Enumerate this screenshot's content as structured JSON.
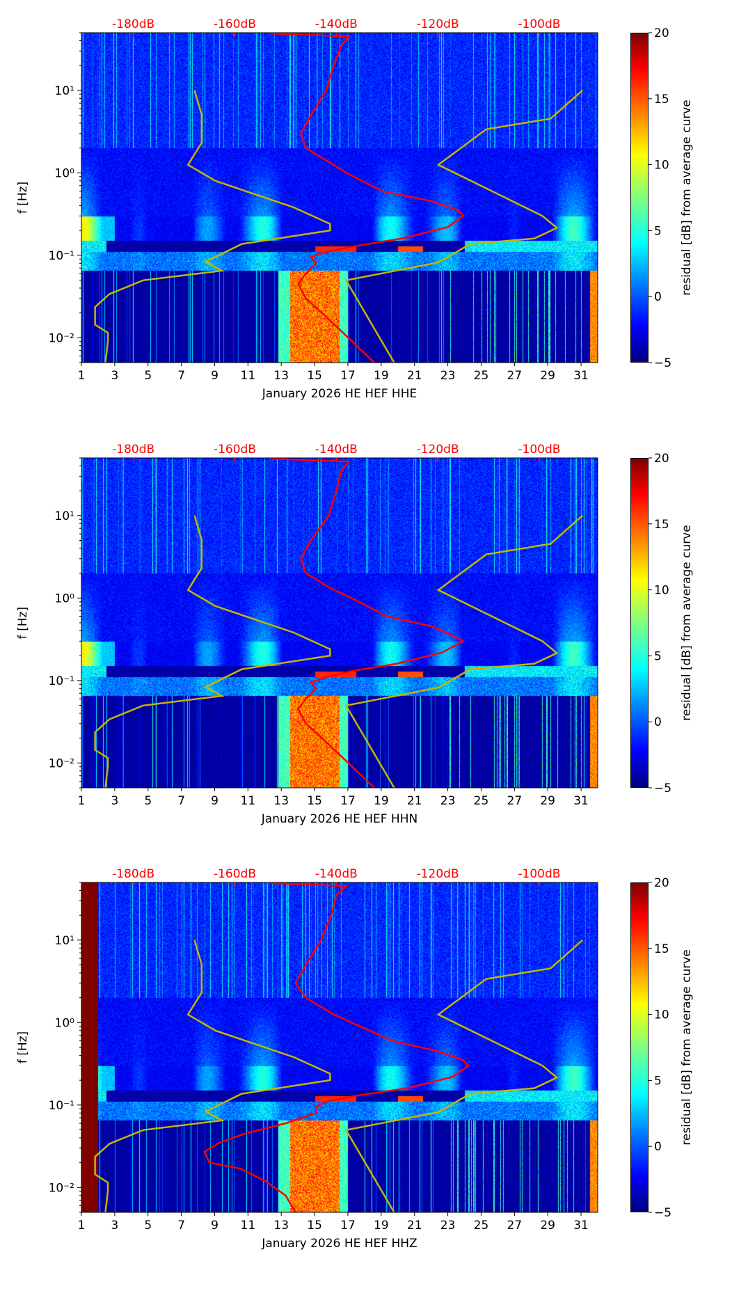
{
  "chart_data": [
    {
      "type": "heatmap",
      "xlabel": "January 2026 HE HEF  HHE",
      "ylabel": "f [Hz]",
      "colorbar_label": "residual [dB] from average curve",
      "colorbar_ticks": [
        "−5",
        "0",
        "5",
        "10",
        "15",
        "20"
      ],
      "colorbar_range": [
        -5,
        20
      ],
      "x_ticks": [
        "1",
        "3",
        "5",
        "7",
        "9",
        "11",
        "13",
        "15",
        "17",
        "19",
        "21",
        "23",
        "25",
        "27",
        "29",
        "31"
      ],
      "x_range_days": [
        1,
        32
      ],
      "y_ticks": [
        "10⁻²",
        "10⁻¹",
        "10⁰",
        "10¹"
      ],
      "y_range_hz": [
        0.005,
        50
      ],
      "top_axis_ticks": [
        "-180dB",
        "-160dB",
        "-140dB",
        "-120dB",
        "-100dB"
      ],
      "top_axis_values_db": [
        -180,
        -160,
        -140,
        -120,
        -100
      ],
      "red_curve_db_hz": [
        [
          -153,
          49
        ],
        [
          -137.5,
          45
        ],
        [
          -139,
          35
        ],
        [
          -140.5,
          20
        ],
        [
          -142,
          10
        ],
        [
          -145,
          5
        ],
        [
          -147,
          3
        ],
        [
          -146,
          2
        ],
        [
          -141,
          1.3
        ],
        [
          -138,
          1
        ],
        [
          -131,
          0.6
        ],
        [
          -121,
          0.45
        ],
        [
          -116,
          0.35
        ],
        [
          -115,
          0.3
        ],
        [
          -118,
          0.22
        ],
        [
          -127,
          0.16
        ],
        [
          -136,
          0.13
        ],
        [
          -142,
          0.11
        ],
        [
          -145,
          0.095
        ],
        [
          -144,
          0.08
        ],
        [
          -146,
          0.06
        ],
        [
          -147.5,
          0.045
        ],
        [
          -146,
          0.03
        ],
        [
          -142,
          0.018
        ],
        [
          -139,
          0.012
        ],
        [
          -136,
          0.008
        ],
        [
          -132.5,
          0.005
        ]
      ],
      "yellow_curves_day_hz": [
        [
          [
            7.79,
            10
          ],
          [
            8.22,
            5.08
          ],
          [
            8.22,
            2.31
          ],
          [
            7.4,
            1.25
          ],
          [
            9.04,
            0.8
          ],
          [
            13.76,
            0.38
          ],
          [
            15.93,
            0.24
          ],
          [
            15.93,
            0.2
          ],
          [
            10.63,
            0.137
          ],
          [
            8.46,
            0.0835
          ],
          [
            9.43,
            0.065
          ],
          [
            4.71,
            0.0497
          ],
          [
            2.69,
            0.0339
          ],
          [
            1.82,
            0.0236
          ],
          [
            1.82,
            0.0144
          ],
          [
            2.59,
            0.0115
          ],
          [
            2.59,
            0.0091
          ],
          [
            2.44,
            0.005
          ]
        ],
        [
          [
            31.09,
            10
          ],
          [
            29.17,
            4.54
          ],
          [
            25.31,
            3.38
          ],
          [
            22.43,
            1.25
          ],
          [
            28.68,
            0.3
          ],
          [
            29.55,
            0.215
          ],
          [
            28.2,
            0.16
          ],
          [
            24.35,
            0.137
          ],
          [
            22.43,
            0.082
          ],
          [
            16.89,
            0.0497
          ],
          [
            19.78,
            0.005
          ]
        ]
      ],
      "colors": {
        "red_curve": "#ff0000",
        "yellow_curve": "#c8b400"
      }
    },
    {
      "type": "heatmap",
      "xlabel": "January 2026 HE HEF  HHN",
      "ylabel": "f [Hz]",
      "colorbar_label": "residual [dB] from average curve",
      "colorbar_ticks": [
        "−5",
        "0",
        "5",
        "10",
        "15",
        "20"
      ],
      "colorbar_range": [
        -5,
        20
      ],
      "x_ticks": [
        "1",
        "3",
        "5",
        "7",
        "9",
        "11",
        "13",
        "15",
        "17",
        "19",
        "21",
        "23",
        "25",
        "27",
        "29",
        "31"
      ],
      "x_range_days": [
        1,
        32
      ],
      "y_ticks": [
        "10⁻²",
        "10⁻¹",
        "10⁰",
        "10¹"
      ],
      "y_range_hz": [
        0.005,
        50
      ],
      "top_axis_ticks": [
        "-180dB",
        "-160dB",
        "-140dB",
        "-120dB",
        "-100dB"
      ],
      "top_axis_values_db": [
        -180,
        -160,
        -140,
        -120,
        -100
      ],
      "red_curve_db_hz": [
        [
          -153,
          49
        ],
        [
          -137.5,
          45
        ],
        [
          -139,
          35
        ],
        [
          -140,
          20
        ],
        [
          -141.5,
          10
        ],
        [
          -145,
          5
        ],
        [
          -147,
          3
        ],
        [
          -146,
          2
        ],
        [
          -141,
          1.3
        ],
        [
          -137,
          1
        ],
        [
          -130,
          0.6
        ],
        [
          -121,
          0.45
        ],
        [
          -117,
          0.35
        ],
        [
          -115,
          0.3
        ],
        [
          -119,
          0.22
        ],
        [
          -128,
          0.16
        ],
        [
          -137,
          0.13
        ],
        [
          -142,
          0.11
        ],
        [
          -145,
          0.095
        ],
        [
          -144,
          0.08
        ],
        [
          -146,
          0.06
        ],
        [
          -147.5,
          0.045
        ],
        [
          -146,
          0.03
        ],
        [
          -142,
          0.018
        ],
        [
          -139,
          0.012
        ],
        [
          -136,
          0.008
        ],
        [
          -132.5,
          0.005
        ]
      ],
      "yellow_curves_day_hz": [
        [
          [
            7.79,
            10
          ],
          [
            8.22,
            5.08
          ],
          [
            8.22,
            2.31
          ],
          [
            7.4,
            1.25
          ],
          [
            9.04,
            0.8
          ],
          [
            13.76,
            0.38
          ],
          [
            15.93,
            0.24
          ],
          [
            15.93,
            0.2
          ],
          [
            10.63,
            0.137
          ],
          [
            8.46,
            0.0835
          ],
          [
            9.43,
            0.065
          ],
          [
            4.71,
            0.0497
          ],
          [
            2.69,
            0.0339
          ],
          [
            1.82,
            0.0236
          ],
          [
            1.82,
            0.0144
          ],
          [
            2.59,
            0.0115
          ],
          [
            2.59,
            0.0091
          ],
          [
            2.44,
            0.005
          ]
        ],
        [
          [
            31.09,
            10
          ],
          [
            29.17,
            4.54
          ],
          [
            25.31,
            3.38
          ],
          [
            22.43,
            1.25
          ],
          [
            28.68,
            0.3
          ],
          [
            29.55,
            0.215
          ],
          [
            28.2,
            0.16
          ],
          [
            24.35,
            0.137
          ],
          [
            22.43,
            0.082
          ],
          [
            16.89,
            0.0497
          ],
          [
            19.78,
            0.005
          ]
        ]
      ],
      "colors": {
        "red_curve": "#ff0000",
        "yellow_curve": "#c8b400"
      }
    },
    {
      "type": "heatmap",
      "xlabel": "January 2026 HE HEF  HHZ",
      "ylabel": "f [Hz]",
      "colorbar_label": "residual [dB] from average curve",
      "colorbar_ticks": [
        "−5",
        "0",
        "5",
        "10",
        "15",
        "20"
      ],
      "colorbar_range": [
        -5,
        20
      ],
      "x_ticks": [
        "1",
        "3",
        "5",
        "7",
        "9",
        "11",
        "13",
        "15",
        "17",
        "19",
        "21",
        "23",
        "25",
        "27",
        "29",
        "31"
      ],
      "x_range_days": [
        1,
        32
      ],
      "y_ticks": [
        "10⁻²",
        "10⁻¹",
        "10⁰",
        "10¹"
      ],
      "y_range_hz": [
        0.005,
        50
      ],
      "top_axis_ticks": [
        "-180dB",
        "-160dB",
        "-140dB",
        "-120dB",
        "-100dB"
      ],
      "top_axis_values_db": [
        -180,
        -160,
        -140,
        -120,
        -100
      ],
      "red_curve_db_hz": [
        [
          -153,
          49
        ],
        [
          -138,
          45
        ],
        [
          -140,
          35
        ],
        [
          -141,
          20
        ],
        [
          -143,
          10
        ],
        [
          -146,
          5
        ],
        [
          -148,
          3
        ],
        [
          -146,
          2
        ],
        [
          -141,
          1.3
        ],
        [
          -137,
          1
        ],
        [
          -129,
          0.6
        ],
        [
          -120,
          0.45
        ],
        [
          -115,
          0.35
        ],
        [
          -114,
          0.3
        ],
        [
          -117,
          0.22
        ],
        [
          -126,
          0.16
        ],
        [
          -136,
          0.13
        ],
        [
          -142,
          0.11
        ],
        [
          -144,
          0.095
        ],
        [
          -144,
          0.08
        ],
        [
          -150,
          0.06
        ],
        [
          -158,
          0.045
        ],
        [
          -163,
          0.035
        ],
        [
          -166,
          0.027
        ],
        [
          -165,
          0.02
        ],
        [
          -159,
          0.017
        ],
        [
          -154,
          0.012
        ],
        [
          -150,
          0.008
        ],
        [
          -148,
          0.005
        ]
      ],
      "yellow_curves_day_hz": [
        [
          [
            7.79,
            10
          ],
          [
            8.22,
            5.08
          ],
          [
            8.22,
            2.31
          ],
          [
            7.4,
            1.25
          ],
          [
            9.04,
            0.8
          ],
          [
            13.76,
            0.38
          ],
          [
            15.93,
            0.24
          ],
          [
            15.93,
            0.2
          ],
          [
            10.63,
            0.137
          ],
          [
            8.46,
            0.0835
          ],
          [
            9.43,
            0.065
          ],
          [
            4.71,
            0.0497
          ],
          [
            2.69,
            0.0339
          ],
          [
            1.82,
            0.0236
          ],
          [
            1.82,
            0.0144
          ],
          [
            2.59,
            0.0115
          ],
          [
            2.59,
            0.0091
          ],
          [
            2.44,
            0.005
          ]
        ],
        [
          [
            31.09,
            10
          ],
          [
            29.17,
            4.54
          ],
          [
            25.31,
            3.38
          ],
          [
            22.43,
            1.25
          ],
          [
            28.68,
            0.3
          ],
          [
            29.55,
            0.215
          ],
          [
            28.2,
            0.16
          ],
          [
            24.35,
            0.137
          ],
          [
            22.43,
            0.082
          ],
          [
            16.89,
            0.0497
          ],
          [
            19.78,
            0.005
          ]
        ]
      ],
      "colors": {
        "red_curve": "#ff0000",
        "yellow_curve": "#c8b400"
      }
    }
  ]
}
